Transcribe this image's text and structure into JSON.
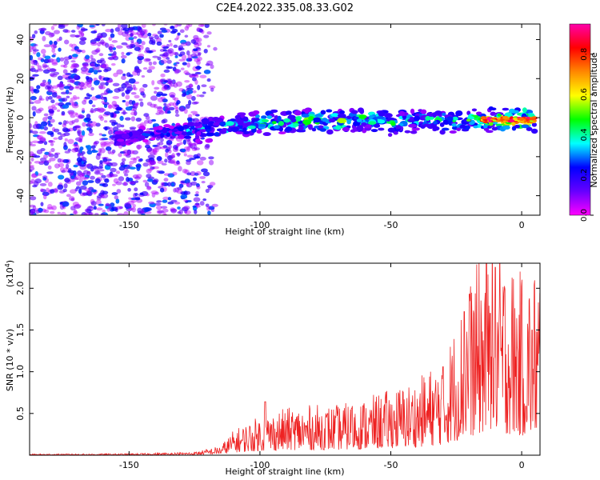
{
  "title": "C2E4.2022.335.08.33.G02",
  "chart_data": [
    {
      "type": "heatmap",
      "xlabel": "Height of straight line (km)",
      "ylabel": "Frequency (Hz)",
      "xlim": [
        -188,
        7
      ],
      "ylim": [
        -50,
        48
      ],
      "x_ticks": [
        -150,
        -100,
        -50,
        0
      ],
      "y_ticks": [
        -40,
        -20,
        0,
        20,
        40
      ],
      "grid": false,
      "colorbar": {
        "label": "Normalized spectral amplitude",
        "range": [
          0.0,
          0.95
        ],
        "ticks": [
          "0.0",
          "0.2",
          "0.4",
          "0.6",
          "0.8"
        ],
        "tick_values": [
          0.0,
          0.2,
          0.4,
          0.6,
          0.8
        ],
        "colormap": [
          "#ff00ff",
          "#6600ff",
          "#0000ff",
          "#00ffff",
          "#00ff00",
          "#ffff00",
          "#ff8800",
          "#ff0000",
          "#ff00aa"
        ]
      },
      "signal_track": {
        "x": [
          -155,
          -140,
          -130,
          -120,
          -110,
          -100,
          -90,
          -80,
          -70,
          -60,
          -50,
          -40,
          -30,
          -20,
          -10,
          0,
          5
        ],
        "freq": [
          -11,
          -8,
          -7,
          -6,
          -4,
          -3,
          -2,
          -1,
          -2,
          0,
          -3,
          -1,
          -2,
          -1,
          -1,
          -1,
          -1
        ],
        "amplitude": [
          0.25,
          0.25,
          0.3,
          0.35,
          0.4,
          0.45,
          0.45,
          0.45,
          0.5,
          0.45,
          0.45,
          0.4,
          0.45,
          0.45,
          0.6,
          0.85,
          0.7
        ]
      },
      "noise_region_x": [
        -188,
        -123
      ],
      "noise_amplitude": [
        0.05,
        0.3
      ]
    },
    {
      "type": "line",
      "xlabel": "Height of straight line (km)",
      "ylabel": "SNR (10 * v/v)",
      "y_multiplier": "(x10",
      "y_multiplier_exp": "4",
      "y_multiplier_close": ")",
      "xlim": [
        -188,
        7
      ],
      "ylim": [
        0,
        23000
      ],
      "x_ticks": [
        -150,
        -100,
        -50,
        0
      ],
      "y_ticks": [
        5000,
        10000,
        15000,
        20000
      ],
      "y_tick_labels": [
        "0.5",
        "1.0",
        "1.5",
        "2.0"
      ],
      "grid": false,
      "series": [
        {
          "color": "#ee2222",
          "envelope_x": [
            -188,
            -150,
            -125,
            -115,
            -110,
            -100,
            -90,
            -80,
            -70,
            -60,
            -50,
            -40,
            -30,
            -25,
            -20,
            -15,
            -10,
            -5,
            0,
            5,
            7
          ],
          "envelope_y": [
            80,
            100,
            200,
            600,
            1600,
            2500,
            3000,
            3200,
            3200,
            3600,
            4200,
            4800,
            6300,
            8500,
            11000,
            13000,
            14000,
            12500,
            11500,
            12000,
            13000
          ],
          "peaks": [
            {
              "x": -98,
              "y": 6400
            },
            {
              "x": -65,
              "y": 5600
            },
            {
              "x": -30,
              "y": 10600
            },
            {
              "x": -22,
              "y": 17200
            },
            {
              "x": -20,
              "y": 19300
            },
            {
              "x": -12,
              "y": 17000
            },
            {
              "x": -10,
              "y": 22500
            },
            {
              "x": 4,
              "y": 15000
            }
          ]
        }
      ]
    }
  ]
}
